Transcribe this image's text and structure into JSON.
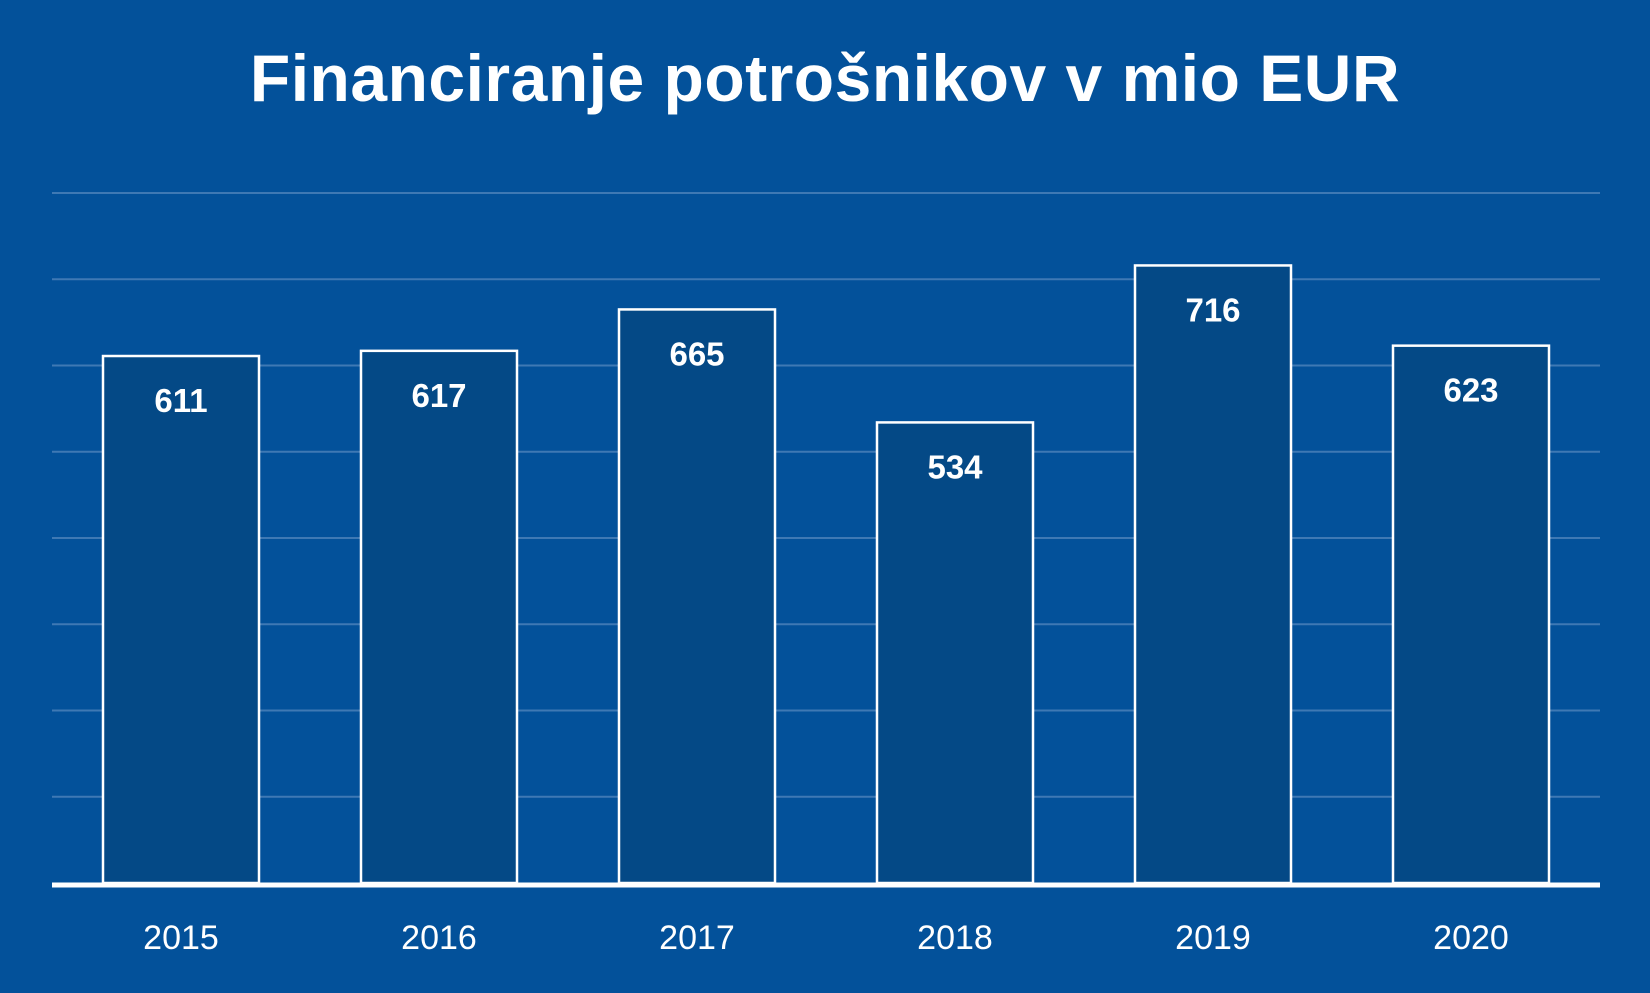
{
  "chart_data": {
    "type": "bar",
    "title": "Financiranje potrošnikov v mio EUR",
    "categories": [
      "2015",
      "2016",
      "2017",
      "2018",
      "2019",
      "2020"
    ],
    "values": [
      611,
      617,
      665,
      534,
      716,
      623
    ],
    "ylim": [
      0,
      800
    ],
    "grid": true,
    "data_labels": true,
    "colors": {
      "background": "#03519a",
      "bar_fill": "#044986",
      "bar_stroke": "#ffffff",
      "gridline": "#3f79b4",
      "text": "#ffffff"
    }
  }
}
